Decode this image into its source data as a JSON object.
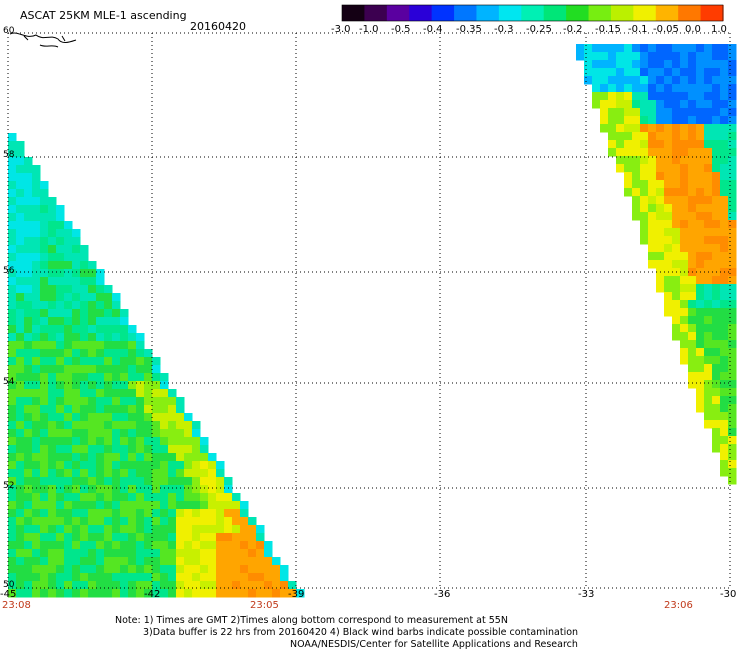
{
  "header": {
    "title": "ASCAT 25KM MLE-1 ascending",
    "date": "20160420"
  },
  "colorbar": {
    "colors": [
      "#140014",
      "#3c0050",
      "#5a00a0",
      "#2a00d8",
      "#0033ff",
      "#0077ff",
      "#00b4ff",
      "#00e6f0",
      "#00f0b4",
      "#00e678",
      "#22dd22",
      "#77ee11",
      "#bbf000",
      "#f0f000",
      "#ffb400",
      "#ff7800",
      "#ff3c00"
    ],
    "labels": [
      "-3.0",
      "-1.0",
      "-0.5",
      "-0.4",
      "-0.35",
      "-0.3",
      "-0.25",
      "-0.2",
      "-0.15",
      "-0.1",
      "-0.05",
      "0.0",
      "1.0"
    ]
  },
  "axes": {
    "lon_labels": [
      "-45",
      "-42",
      "-39",
      "-36",
      "-33",
      "-30"
    ],
    "lat_labels": [
      "60",
      "58",
      "56",
      "54",
      "52",
      "50"
    ],
    "lon_range": [
      -45,
      -30
    ],
    "lat_range": [
      50,
      60
    ],
    "grid": "dotted"
  },
  "times": [
    "23:08",
    "23:05",
    "23:06"
  ],
  "notes": [
    "Note: 1) Times are GMT 2)Times along bottom correspond to measurement at 55N",
    "3)Data buffer is 22 hrs from 20160420 4) Black wind barbs indicate possible contamination",
    "NOAA/NESDIS/Center for Satellite Applications and Research"
  ]
}
